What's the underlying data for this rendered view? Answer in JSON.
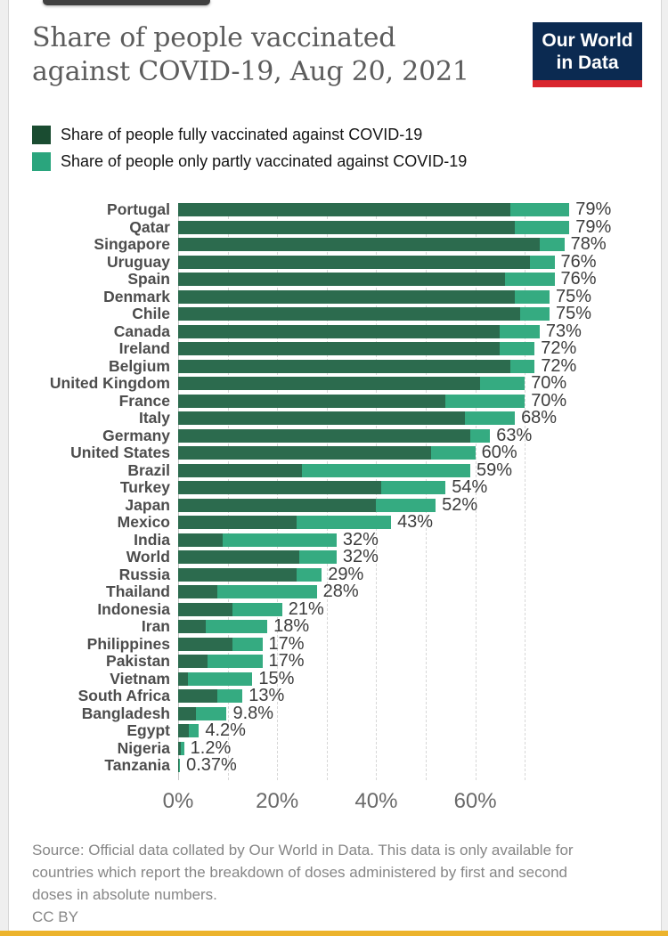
{
  "header": {
    "title_line1": "Share of people vaccinated",
    "title_line2": "against COVID-19, Aug 20, 2021",
    "logo_line1": "Our World",
    "logo_line2": "in Data"
  },
  "legend": {
    "items": [
      {
        "label": "Share of people fully vaccinated against COVID-19",
        "color": "#1a4c31"
      },
      {
        "label": "Share of people only partly vaccinated against COVID-19",
        "color": "#2aa57d"
      }
    ]
  },
  "footer": {
    "source": "Source: Official data collated by Our World in Data. This data is only available for countries which report the breakdown of doses administered by first and second doses in absolute numbers.",
    "license": "CC BY"
  },
  "chart_data": {
    "type": "bar",
    "orientation": "horizontal",
    "stacked": true,
    "unit": "%",
    "xlim": [
      0,
      79
    ],
    "grid": true,
    "gridlines_pct": [
      0,
      10,
      20,
      30,
      40,
      50,
      60,
      70
    ],
    "x_ticks": [
      {
        "pct": 0,
        "label": "0%"
      },
      {
        "pct": 20,
        "label": "20%"
      },
      {
        "pct": 40,
        "label": "40%"
      },
      {
        "pct": 60,
        "label": "60%"
      }
    ],
    "series_names": [
      "Share of people fully vaccinated against COVID-19",
      "Share of people only partly vaccinated against COVID-19"
    ],
    "colors": {
      "fully_bar": "#2c6b4e",
      "partly_bar": "#35ab81",
      "fully_legend": "#1a4c31",
      "partly_legend": "#2aa57d",
      "logo_bg": "#0b2a51",
      "logo_stripe": "#d9262e",
      "bottom_bar": "#ecb32c"
    },
    "rows": [
      {
        "country": "Portugal",
        "fully": 67,
        "partly": 12,
        "total_label": "79%"
      },
      {
        "country": "Qatar",
        "fully": 68,
        "partly": 11,
        "total_label": "79%"
      },
      {
        "country": "Singapore",
        "fully": 73,
        "partly": 5,
        "total_label": "78%"
      },
      {
        "country": "Uruguay",
        "fully": 71,
        "partly": 5,
        "total_label": "76%"
      },
      {
        "country": "Spain",
        "fully": 66,
        "partly": 10,
        "total_label": "76%"
      },
      {
        "country": "Denmark",
        "fully": 68,
        "partly": 7,
        "total_label": "75%"
      },
      {
        "country": "Chile",
        "fully": 69,
        "partly": 6,
        "total_label": "75%"
      },
      {
        "country": "Canada",
        "fully": 65,
        "partly": 8,
        "total_label": "73%"
      },
      {
        "country": "Ireland",
        "fully": 65,
        "partly": 7,
        "total_label": "72%"
      },
      {
        "country": "Belgium",
        "fully": 67,
        "partly": 5,
        "total_label": "72%"
      },
      {
        "country": "United Kingdom",
        "fully": 61,
        "partly": 9,
        "total_label": "70%"
      },
      {
        "country": "France",
        "fully": 54,
        "partly": 16,
        "total_label": "70%"
      },
      {
        "country": "Italy",
        "fully": 58,
        "partly": 10,
        "total_label": "68%"
      },
      {
        "country": "Germany",
        "fully": 59,
        "partly": 4,
        "total_label": "63%"
      },
      {
        "country": "United States",
        "fully": 51,
        "partly": 9,
        "total_label": "60%"
      },
      {
        "country": "Brazil",
        "fully": 25,
        "partly": 34,
        "total_label": "59%"
      },
      {
        "country": "Turkey",
        "fully": 41,
        "partly": 13,
        "total_label": "54%"
      },
      {
        "country": "Japan",
        "fully": 40,
        "partly": 12,
        "total_label": "52%"
      },
      {
        "country": "Mexico",
        "fully": 24,
        "partly": 19,
        "total_label": "43%"
      },
      {
        "country": "India",
        "fully": 9,
        "partly": 23,
        "total_label": "32%"
      },
      {
        "country": "World",
        "fully": 24.5,
        "partly": 7.5,
        "total_label": "32%"
      },
      {
        "country": "Russia",
        "fully": 24,
        "partly": 5,
        "total_label": "29%"
      },
      {
        "country": "Thailand",
        "fully": 8,
        "partly": 20,
        "total_label": "28%"
      },
      {
        "country": "Indonesia",
        "fully": 11,
        "partly": 10,
        "total_label": "21%"
      },
      {
        "country": "Iran",
        "fully": 5.5,
        "partly": 12.5,
        "total_label": "18%"
      },
      {
        "country": "Philippines",
        "fully": 11,
        "partly": 6,
        "total_label": "17%"
      },
      {
        "country": "Pakistan",
        "fully": 6,
        "partly": 11,
        "total_label": "17%"
      },
      {
        "country": "Vietnam",
        "fully": 2,
        "partly": 13,
        "total_label": "15%"
      },
      {
        "country": "South Africa",
        "fully": 8,
        "partly": 5,
        "total_label": "13%"
      },
      {
        "country": "Bangladesh",
        "fully": 3.6,
        "partly": 6.2,
        "total_label": "9.8%"
      },
      {
        "country": "Egypt",
        "fully": 2.1,
        "partly": 2.1,
        "total_label": "4.2%"
      },
      {
        "country": "Nigeria",
        "fully": 0.6,
        "partly": 0.6,
        "total_label": "1.2%"
      },
      {
        "country": "Tanzania",
        "fully": 0.2,
        "partly": 0.17,
        "total_label": "0.37%"
      }
    ]
  }
}
